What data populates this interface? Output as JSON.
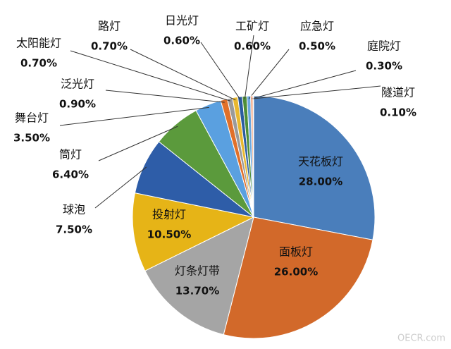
{
  "chart_data": {
    "type": "pie",
    "categories": [
      "天花板灯",
      "面板灯",
      "灯条灯带",
      "投射灯",
      "球泡",
      "筒灯",
      "舞台灯",
      "泛光灯",
      "太阳能灯",
      "路灯",
      "日光灯",
      "工矿灯",
      "应急灯",
      "庭院灯",
      "隧道灯"
    ],
    "values": [
      28,
      26,
      13.7,
      10.5,
      7.5,
      6.4,
      3.5,
      0.9,
      0.7,
      0.7,
      0.6,
      0.6,
      0.5,
      0.3,
      0.1
    ],
    "value_labels": [
      "28.00%",
      "26.00%",
      "13.70%",
      "10.50%",
      "7.50%",
      "6.40%",
      "3.50%",
      "0.90%",
      "0.70%",
      "0.70%",
      "0.60%",
      "0.60%",
      "0.50%",
      "0.30%",
      "0.10%"
    ],
    "colors": [
      "#4a7ebb",
      "#d2692a",
      "#a5a5a5",
      "#e6b417",
      "#2e5da8",
      "#5b9a3c",
      "#5aa0e0",
      "#e0702a",
      "#9a9a9a",
      "#e8b830",
      "#2b5ca0",
      "#4e8e38",
      "#6aa7df",
      "#f2a07a",
      "#c8c8c8"
    ]
  },
  "watermark": "OECR.com"
}
